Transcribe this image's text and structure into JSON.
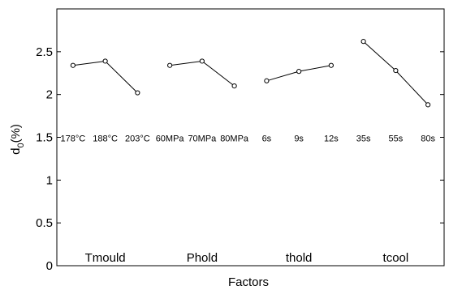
{
  "chart_data": {
    "type": "line",
    "xlabel": "Factors",
    "ylabel": "d",
    "ylabel_subscript": "0",
    "ylabel_suffix": "(%)",
    "ylim": [
      0,
      3
    ],
    "yticks": [
      "0",
      "0.5",
      "1",
      "1.5",
      "2",
      "2.5"
    ],
    "ytick_values": [
      0,
      0.5,
      1,
      1.5,
      2,
      2.5
    ],
    "grid": false,
    "level_label_y": 1.5,
    "factor_label_y": 0.03,
    "groups": [
      {
        "factor": "Tmould",
        "levels": [
          "178°C",
          "188°C",
          "203°C"
        ],
        "values": [
          2.34,
          2.39,
          2.02
        ]
      },
      {
        "factor": "Phold",
        "levels": [
          "60MPa",
          "70MPa",
          "80MPa"
        ],
        "values": [
          2.34,
          2.39,
          2.1
        ]
      },
      {
        "factor": "thold",
        "levels": [
          "6s",
          "9s",
          "12s"
        ],
        "values": [
          2.16,
          2.27,
          2.34
        ]
      },
      {
        "factor": "tcool",
        "levels": [
          "35s",
          "55s",
          "80s"
        ],
        "values": [
          2.62,
          2.28,
          1.88
        ]
      }
    ]
  }
}
